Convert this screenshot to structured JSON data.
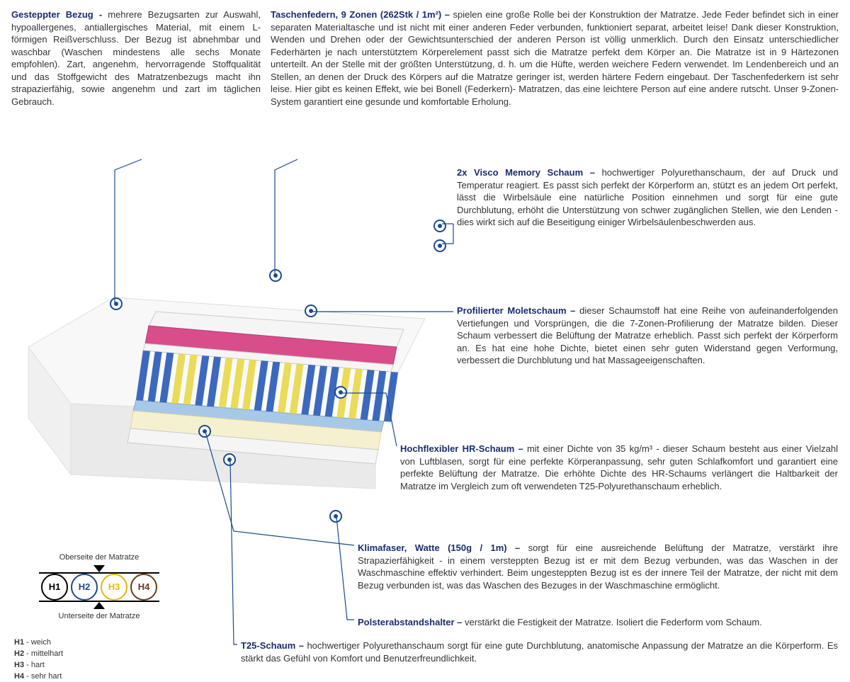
{
  "colors": {
    "title": "#1a2d6b",
    "text": "#333333",
    "marker": "#1a4b8c",
    "h1": "#000000",
    "h2": "#1a4b8c",
    "h3": "#e6b800",
    "h4": "#6b3a1a",
    "foam_pink": "#d94d8a",
    "foam_white": "#f5f5f5",
    "foam_blue": "#2b5cb8",
    "foam_yellow": "#e8d84a",
    "foam_cream": "#f5f0d0",
    "foam_lightblue": "#a8c8e8"
  },
  "top": {
    "bezug_title": "Gesteppter Bezug - ",
    "bezug_body": "mehrere Bezugsarten zur Auswahl, hypoallergenes, antiallergisches Material, mit einem L-förmigen Reißverschluss. Der Bezug ist abnehmbar und waschbar (Waschen mindestens alle sechs Monate empfohlen). Zart, angenehm, hervorragende Stoffqualität und das Stoffgewicht des Matratzenbezugs macht ihn strapazierfähig, sowie angenehm und zart im täglichen Gebrauch.",
    "federn_title": "Taschenfedern, 9 Zonen (262Stk / 1m²) – ",
    "federn_body": "spielen eine große Rolle bei der Konstruktion der Matratze. Jede Feder befindet sich in einer separaten Materialtasche und ist nicht mit einer anderen Feder verbunden, funktioniert separat, arbeitet leise! Dank dieser Konstruktion, Wenden und Drehen oder der Gewichtsunterschied der anderen Person ist völlig unmerklich. Durch den Einsatz unterschiedlicher Federhärten je nach unterstütztem Körperelement passt sich die Matratze perfekt dem Körper an. Die Matratze ist in 9 Härtezonen unterteilt. An der Stelle mit der größten Unterstützung, d. h. um die Hüfte, werden weichere Federn verwendet. Im Lendenbereich und an Stellen, an denen der Druck des Körpers auf die Matratze geringer ist, werden härtere Federn eingebaut. Der Taschenfederkern ist sehr leise. Hier gibt es keinen Effekt, wie bei Bonell (Federkern)- Matratzen, das eine leichtere Person auf eine andere rutscht. Unser 9-Zonen-System garantiert eine gesunde und komfortable Erholung."
  },
  "sections": {
    "visco_title": "2x Visco Memory Schaum – ",
    "visco_body": "hochwertiger Polyurethanschaum, der auf Druck und Temperatur reagiert. Es passt sich perfekt der Körperform an, stützt es an jedem Ort perfekt, lässt die Wirbelsäule eine natürliche Position einnehmen und sorgt für eine gute Durchblutung, erhöht die Unterstützung von schwer zugänglichen Stellen, wie den Lenden - dies wirkt sich auf die Beseitigung einiger Wirbelsäulenbeschwerden aus.",
    "molet_title": "Profilierter Moletschaum – ",
    "molet_body": "dieser Schaumstoff hat eine Reihe von aufeinanderfolgenden Vertiefungen und Vorsprüngen, die die 7-Zonen-Profilierung der Matratze bilden. Dieser Schaum verbessert die Belüftung der Matratze erheblich. Passt sich perfekt der Körperform an. Es hat eine hohe Dichte, bietet einen sehr guten Widerstand gegen Verformung, verbessert die Durchblutung und hat Massageeigenschaften.",
    "hr_title": "Hochflexibler HR-Schaum – ",
    "hr_body": "mit einer Dichte von 35 kg/m³ - dieser Schaum besteht aus einer Vielzahl von Luftblasen, sorgt für eine perfekte Körperanpassung, sehr guten Schlafkomfort und garantiert eine perfekte Belüftung der Matratze. Die erhöhte Dichte des HR-Schaums verlängert die Haltbarkeit der Matratze im Vergleich zum oft verwendeten T25-Polyurethanschaum erheblich.",
    "klima_title": "Klimafaser, Watte (150g / 1m) – ",
    "klima_body": "sorgt für eine ausreichende Belüftung der Matratze, verstärkt ihre Strapazierfähigkeit - in einem versteppten Bezug ist er mit dem Bezug verbunden, was das Waschen in der Waschmaschine effektiv verhindert. Beim ungesteppten Bezug ist es der innere Teil der Matratze, der nicht mit dem Bezug verbunden ist, was das Waschen des Bezuges in der Waschmaschine ermöglicht.",
    "polster_title": "Polsterabstandshalter – ",
    "polster_body": "verstärkt die Festigkeit der Matratze. Isoliert die Federform vom Schaum.",
    "t25_title": "T25-Schaum – ",
    "t25_body": "hochwertiger Polyurethanschaum sorgt für eine gute Durchblutung, anatomische Anpassung der Matratze an die Körperform. Es stärkt das Gefühl von Komfort und Benutzerfreundlichkeit."
  },
  "legend": {
    "top_label": "Oberseite der Matratze",
    "bottom_label": "Unterseite der Matratze",
    "items": [
      {
        "code": "H1",
        "desc": "weich"
      },
      {
        "code": "H2",
        "desc": "mittelhart"
      },
      {
        "code": "H3",
        "desc": "hart"
      },
      {
        "code": "H4",
        "desc": "sehr hart"
      }
    ]
  }
}
